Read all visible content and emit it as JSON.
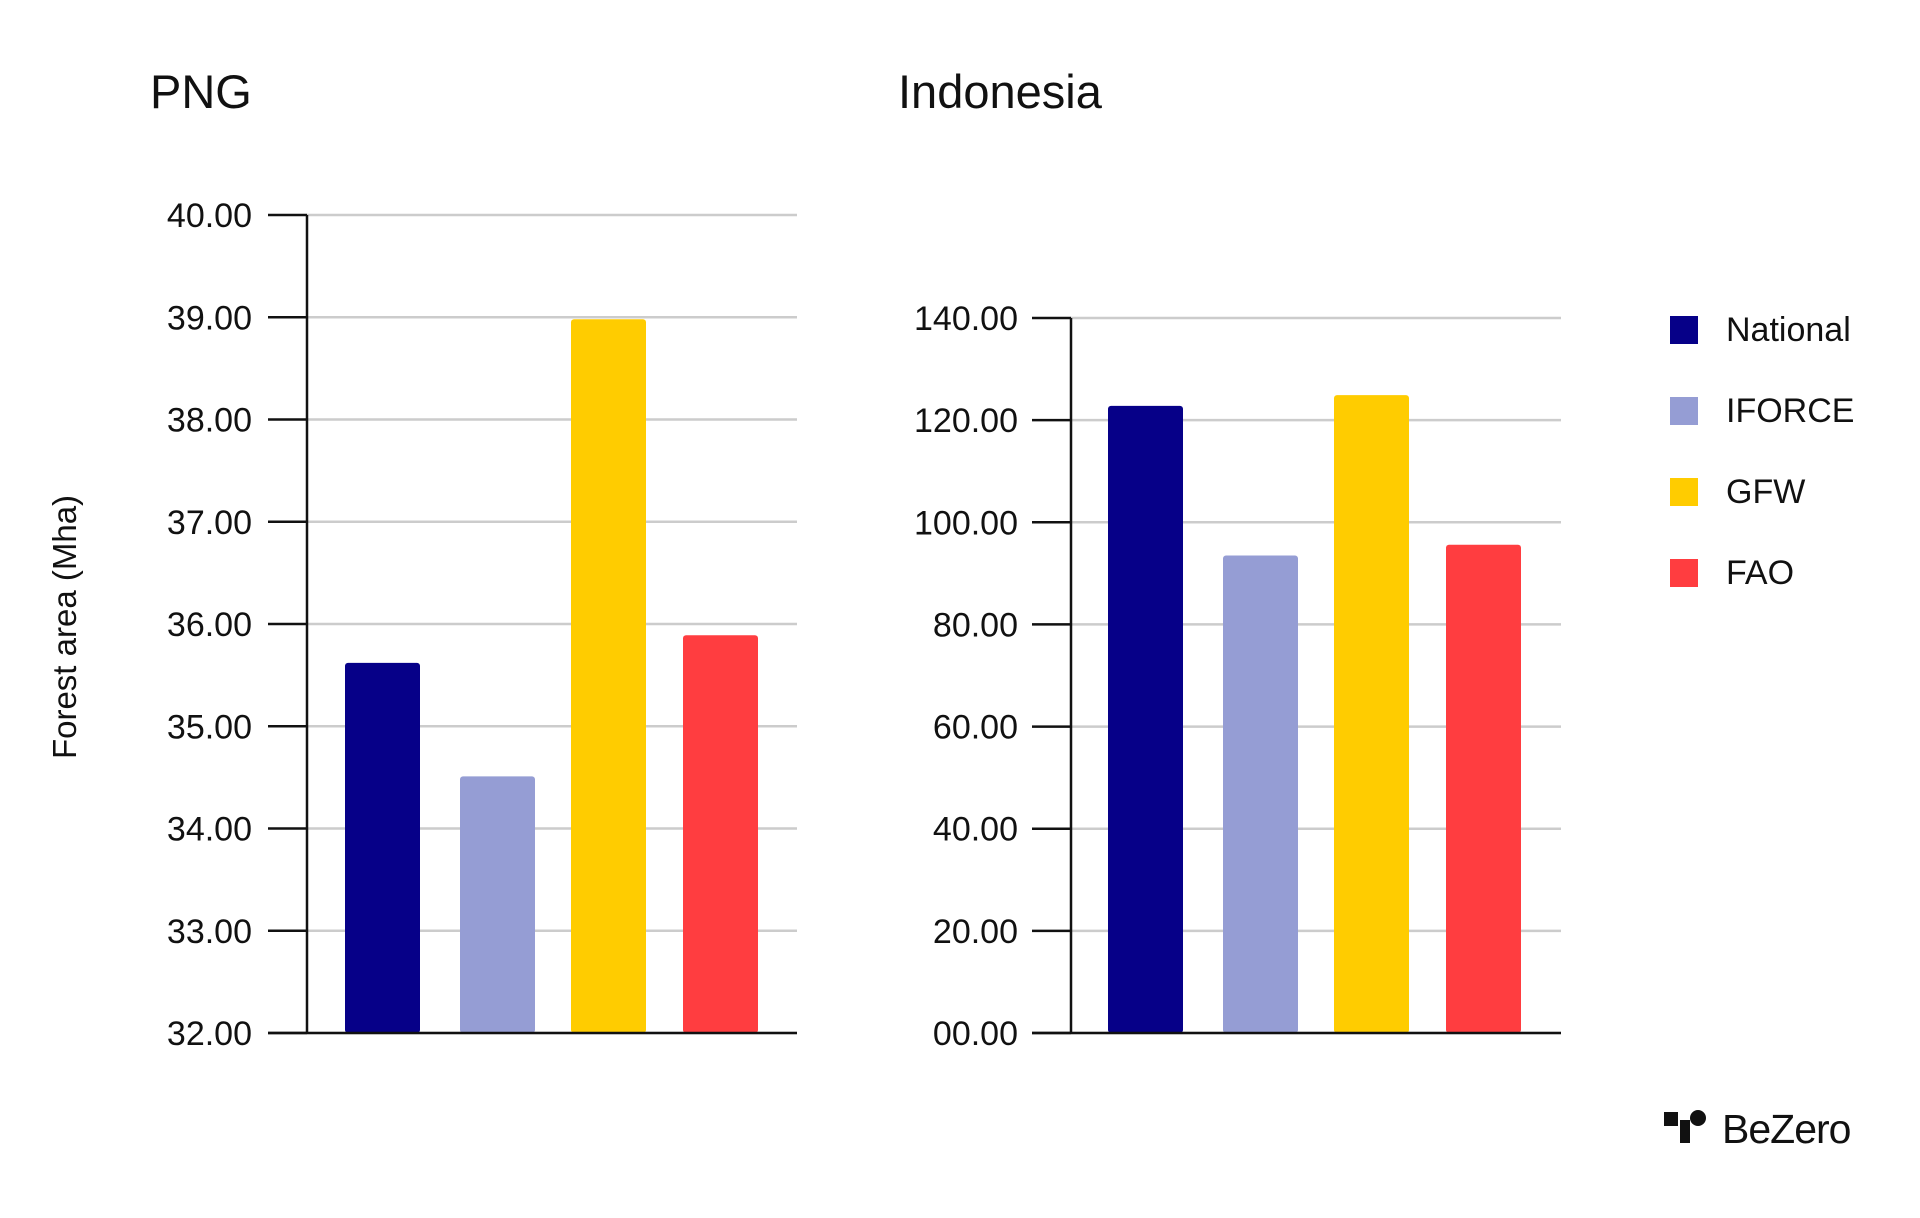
{
  "colors": {
    "National": "#060088",
    "IFORCE": "#959dd4",
    "GFW": "#ffcc00",
    "FAO": "#ff3d40",
    "gridline": "#cccccc",
    "axis": "#111111",
    "text": "#111111"
  },
  "legend": {
    "position": "right",
    "items": [
      "National",
      "IFORCE",
      "GFW",
      "FAO"
    ]
  },
  "ylabel": "Forest area (Mha)",
  "brand": {
    "name": "BeZero",
    "icon": "bezero-logo-icon"
  },
  "chart_data": [
    {
      "type": "bar",
      "title": "PNG",
      "xlabel": "",
      "ylabel": "Forest area (Mha)",
      "categories": [
        "National",
        "IFORCE",
        "GFW",
        "FAO"
      ],
      "values": [
        35.62,
        34.51,
        38.98,
        35.89
      ],
      "ylim": [
        32,
        40
      ],
      "yticks": [
        "32.00",
        "33.00",
        "34.00",
        "35.00",
        "36.00",
        "37.00",
        "38.00",
        "39.00",
        "40.00"
      ],
      "ytick_values": [
        32,
        33,
        34,
        35,
        36,
        37,
        38,
        39,
        40
      ],
      "grid": true
    },
    {
      "type": "bar",
      "title": "Indonesia",
      "xlabel": "",
      "ylabel": "",
      "categories": [
        "National",
        "IFORCE",
        "GFW",
        "FAO"
      ],
      "values": [
        122.8,
        93.5,
        124.9,
        95.6
      ],
      "ylim": [
        0,
        140
      ],
      "yticks": [
        "00.00",
        "20.00",
        "40.00",
        "60.00",
        "80.00",
        "100.00",
        "120.00",
        "140.00"
      ],
      "ytick_values": [
        0,
        20,
        40,
        60,
        80,
        100,
        120,
        140
      ],
      "grid": true
    }
  ]
}
